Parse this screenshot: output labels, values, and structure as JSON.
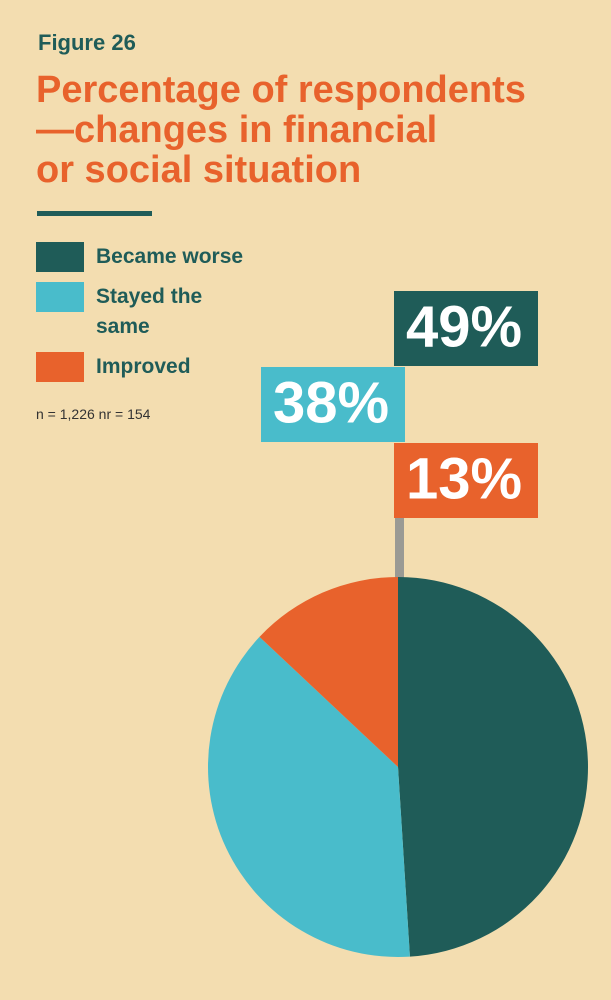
{
  "chart_data": {
    "type": "pie",
    "figure_label": "Figure 26",
    "title": [
      "Percentage of respondents",
      "—changes in financial",
      "or social situation"
    ],
    "note": "n = 1,226  nr = 154",
    "categories": [
      "Became worse",
      "Stayed the same",
      "Improved"
    ],
    "values": [
      49,
      38,
      13
    ],
    "value_labels": [
      "49%",
      "38%",
      "13%"
    ],
    "colors": [
      "#1f5c58",
      "#49bccb",
      "#e8622c"
    ]
  }
}
